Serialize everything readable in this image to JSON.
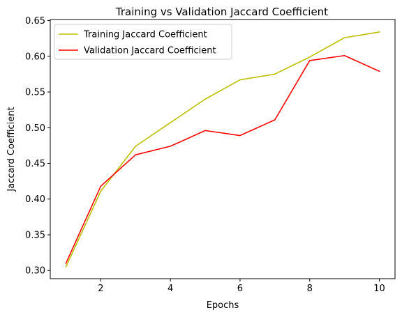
{
  "chart_data": {
    "type": "line",
    "title": "Training vs Validation Jaccard Coefficient",
    "xlabel": "Epochs",
    "ylabel": "Jaccard Coefficient",
    "x": [
      1,
      2,
      3,
      4,
      5,
      6,
      7,
      8,
      9,
      10
    ],
    "xlim": [
      0.55,
      10.45
    ],
    "ylim": [
      0.2885,
      0.6515
    ],
    "xticks": [
      2,
      4,
      6,
      8,
      10
    ],
    "yticks": [
      0.3,
      0.35,
      0.4,
      0.45,
      0.5,
      0.55,
      0.6,
      0.65
    ],
    "ytick_labels": [
      "0.30",
      "0.35",
      "0.40",
      "0.45",
      "0.50",
      "0.55",
      "0.60",
      "0.65"
    ],
    "grid": false,
    "legend_position": "top-left",
    "series": [
      {
        "name": "Training Jaccard Coefficient",
        "color": "#bfbf00",
        "values": [
          0.305,
          0.411,
          0.474,
          0.507,
          0.54,
          0.567,
          0.575,
          0.599,
          0.626,
          0.634
        ]
      },
      {
        "name": "Validation Jaccard Coefficient",
        "color": "#ff0000",
        "values": [
          0.31,
          0.418,
          0.462,
          0.474,
          0.496,
          0.489,
          0.511,
          0.594,
          0.601,
          0.579
        ]
      }
    ]
  }
}
